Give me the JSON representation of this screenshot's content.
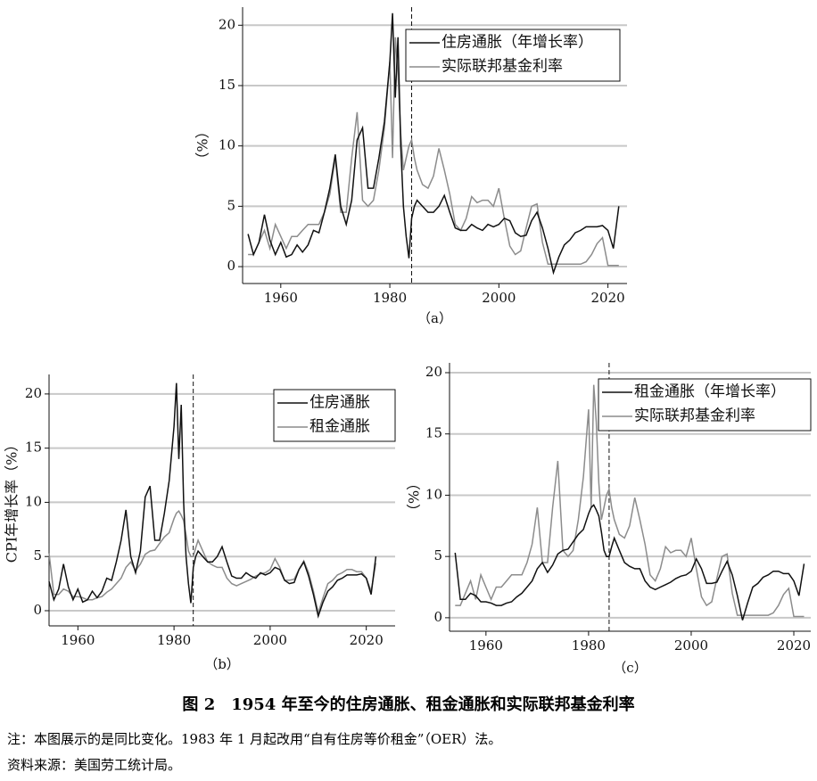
{
  "chart_data": [
    {
      "type": "line",
      "panel": "（a）",
      "ylabel": "（%）",
      "x": [
        1954,
        1955,
        1956,
        1957,
        1958,
        1959,
        1960,
        1961,
        1962,
        1963,
        1964,
        1965,
        1966,
        1967,
        1968,
        1969,
        1970,
        1971,
        1972,
        1973,
        1974,
        1975,
        1976,
        1977,
        1978,
        1979,
        1980,
        1980.5,
        1981,
        1981.5,
        1982,
        1982.5,
        1983,
        1983.5,
        1984,
        1984.5,
        1985,
        1986,
        1987,
        1988,
        1989,
        1990,
        1991,
        1992,
        1993,
        1994,
        1995,
        1996,
        1997,
        1998,
        1999,
        2000,
        2001,
        2002,
        2003,
        2004,
        2005,
        2006,
        2007,
        2008,
        2009,
        2010,
        2011,
        2012,
        2013,
        2014,
        2015,
        2016,
        2017,
        2018,
        2019,
        2020,
        2021,
        2022
      ],
      "series": [
        {
          "name": "住房通胀（年增长率）",
          "color": "#111111",
          "values": [
            2.7,
            1.0,
            2.0,
            4.3,
            2.2,
            1.0,
            2.0,
            0.8,
            1.0,
            1.8,
            1.2,
            1.8,
            3.0,
            2.8,
            4.5,
            6.5,
            9.3,
            5.0,
            3.5,
            5.5,
            10.5,
            11.5,
            6.5,
            6.5,
            9.0,
            12.0,
            17,
            21,
            14,
            19,
            10,
            5,
            2.5,
            0.7,
            4.0,
            5.0,
            5.5,
            5.0,
            4.5,
            4.5,
            5.0,
            5.9,
            4.5,
            3.2,
            3.0,
            3.0,
            3.5,
            3.2,
            3.0,
            3.5,
            3.3,
            3.5,
            4.0,
            3.8,
            2.8,
            2.5,
            2.6,
            3.8,
            4.5,
            3.2,
            1.5,
            -0.5,
            0.8,
            1.8,
            2.2,
            2.8,
            3.0,
            3.3,
            3.3,
            3.3,
            3.4,
            3.0,
            1.5,
            5.0
          ]
        },
        {
          "name": "实际联邦基金利率",
          "color": "#8c8c8c",
          "values": [
            1.0,
            1.0,
            2.0,
            3.0,
            1.5,
            3.5,
            2.5,
            1.5,
            2.5,
            2.5,
            3.0,
            3.5,
            3.5,
            3.5,
            4.5,
            6.0,
            9.0,
            4.5,
            4.5,
            9.0,
            12.8,
            5.5,
            5.0,
            5.5,
            8.0,
            11.5,
            17,
            9,
            19,
            16,
            11,
            8,
            9,
            10,
            10.5,
            9,
            8.0,
            6.8,
            6.5,
            7.5,
            9.8,
            8.0,
            6.0,
            3.5,
            3.0,
            4.0,
            5.8,
            5.3,
            5.5,
            5.5,
            5.0,
            6.5,
            4.0,
            1.7,
            1.0,
            1.3,
            3.2,
            5.0,
            5.2,
            2.0,
            0.2,
            0.2,
            0.2,
            0.2,
            0.2,
            0.2,
            0.2,
            0.4,
            1.0,
            1.9,
            2.4,
            0.1,
            0.1,
            0.1
          ]
        }
      ],
      "xlim": [
        1953,
        2023.5
      ],
      "xticks": [
        1960,
        1980,
        2000,
        2020
      ],
      "ylim": [
        -1.4,
        21.5
      ],
      "yticks": [
        0,
        5,
        10,
        15,
        20
      ],
      "grid": true,
      "vline": 1984,
      "legend": "upper right"
    },
    {
      "type": "line",
      "panel": "（b）",
      "ylabel": "CPI年增长率（%）",
      "x": [
        1954,
        1955,
        1956,
        1957,
        1958,
        1959,
        1960,
        1961,
        1962,
        1963,
        1964,
        1965,
        1966,
        1967,
        1968,
        1969,
        1970,
        1971,
        1972,
        1973,
        1974,
        1975,
        1976,
        1977,
        1978,
        1979,
        1980,
        1980.5,
        1981,
        1981.5,
        1982,
        1982.5,
        1983,
        1983.5,
        1984,
        1984.5,
        1985,
        1986,
        1987,
        1988,
        1989,
        1990,
        1991,
        1992,
        1993,
        1994,
        1995,
        1996,
        1997,
        1998,
        1999,
        2000,
        2001,
        2002,
        2003,
        2004,
        2005,
        2006,
        2007,
        2008,
        2009,
        2010,
        2011,
        2012,
        2013,
        2014,
        2015,
        2016,
        2017,
        2018,
        2019,
        2020,
        2021,
        2022
      ],
      "series": [
        {
          "name": "住房通胀",
          "color": "#111111",
          "values": [
            2.7,
            1.0,
            2.0,
            4.3,
            2.2,
            1.0,
            2.0,
            0.8,
            1.0,
            1.8,
            1.2,
            1.8,
            3.0,
            2.8,
            4.5,
            6.5,
            9.3,
            5.0,
            3.5,
            5.5,
            10.5,
            11.5,
            6.5,
            6.5,
            9.0,
            12.0,
            17,
            21,
            14,
            19,
            10,
            5,
            2.5,
            0.7,
            4.0,
            5.0,
            5.5,
            5.0,
            4.5,
            4.5,
            5.0,
            5.9,
            4.5,
            3.2,
            3.0,
            3.0,
            3.5,
            3.2,
            3.0,
            3.5,
            3.3,
            3.5,
            4.0,
            3.8,
            2.8,
            2.5,
            2.6,
            3.8,
            4.5,
            3.2,
            1.5,
            -0.5,
            0.8,
            1.8,
            2.2,
            2.8,
            3.0,
            3.3,
            3.3,
            3.3,
            3.4,
            3.0,
            1.5,
            5.0
          ]
        },
        {
          "name": "租金通胀",
          "color": "#8c8c8c",
          "values": [
            5.3,
            1.5,
            1.5,
            2.0,
            1.8,
            1.3,
            1.3,
            1.2,
            1.0,
            1.0,
            1.2,
            1.3,
            1.7,
            2.0,
            2.5,
            3.0,
            4.0,
            4.5,
            3.7,
            4.3,
            5.2,
            5.5,
            5.6,
            6.2,
            6.8,
            7.2,
            8.5,
            9.0,
            9.2,
            8.8,
            8.3,
            7.0,
            5.5,
            5.0,
            5.0,
            5.8,
            6.5,
            5.5,
            4.5,
            4.2,
            4.0,
            4.0,
            3.0,
            2.5,
            2.3,
            2.5,
            2.7,
            2.9,
            3.2,
            3.4,
            3.5,
            3.8,
            4.8,
            4.0,
            2.8,
            2.8,
            2.9,
            3.8,
            4.6,
            3.5,
            1.8,
            -0.2,
            1.2,
            2.5,
            2.8,
            3.3,
            3.5,
            3.8,
            3.8,
            3.6,
            3.6,
            3.0,
            1.8,
            4.4
          ]
        }
      ],
      "xlim": [
        1954,
        2026
      ],
      "xticks": [
        1960,
        1980,
        2000,
        2020
      ],
      "ylim": [
        -1.4,
        21.8
      ],
      "yticks": [
        0,
        5,
        10,
        15,
        20
      ],
      "grid": true,
      "vline": 1984,
      "legend": "upper right"
    },
    {
      "type": "line",
      "panel": "（c）",
      "ylabel": "（%）",
      "x": [
        1954,
        1955,
        1956,
        1957,
        1958,
        1959,
        1960,
        1961,
        1962,
        1963,
        1964,
        1965,
        1966,
        1967,
        1968,
        1969,
        1970,
        1971,
        1972,
        1973,
        1974,
        1975,
        1976,
        1977,
        1978,
        1979,
        1980,
        1980.5,
        1981,
        1981.5,
        1982,
        1982.5,
        1983,
        1983.5,
        1984,
        1984.5,
        1985,
        1986,
        1987,
        1988,
        1989,
        1990,
        1991,
        1992,
        1993,
        1994,
        1995,
        1996,
        1997,
        1998,
        1999,
        2000,
        2001,
        2002,
        2003,
        2004,
        2005,
        2006,
        2007,
        2008,
        2009,
        2010,
        2011,
        2012,
        2013,
        2014,
        2015,
        2016,
        2017,
        2018,
        2019,
        2020,
        2021,
        2022
      ],
      "series": [
        {
          "name": "租金通胀（年增长率）",
          "color": "#111111",
          "values": [
            5.3,
            1.5,
            1.5,
            2.0,
            1.8,
            1.3,
            1.3,
            1.2,
            1.0,
            1.0,
            1.2,
            1.3,
            1.7,
            2.0,
            2.5,
            3.0,
            4.0,
            4.5,
            3.7,
            4.3,
            5.2,
            5.5,
            5.6,
            6.2,
            6.8,
            7.2,
            8.5,
            9.0,
            9.2,
            8.8,
            8.3,
            7.0,
            5.5,
            5.0,
            5.0,
            5.8,
            6.5,
            5.5,
            4.5,
            4.2,
            4.0,
            4.0,
            3.0,
            2.5,
            2.3,
            2.5,
            2.7,
            2.9,
            3.2,
            3.4,
            3.5,
            3.8,
            4.8,
            4.0,
            2.8,
            2.8,
            2.9,
            3.8,
            4.6,
            3.5,
            1.8,
            -0.2,
            1.2,
            2.5,
            2.8,
            3.3,
            3.5,
            3.8,
            3.8,
            3.6,
            3.6,
            3.0,
            1.8,
            4.4
          ]
        },
        {
          "name": "实际联邦基金利率",
          "color": "#8c8c8c",
          "values": [
            1.0,
            1.0,
            2.0,
            3.0,
            1.5,
            3.5,
            2.5,
            1.5,
            2.5,
            2.5,
            3.0,
            3.5,
            3.5,
            3.5,
            4.5,
            6.0,
            9.0,
            4.5,
            4.5,
            9.0,
            12.8,
            5.5,
            5.0,
            5.5,
            8.0,
            11.5,
            17,
            9,
            19,
            16,
            11,
            8,
            9,
            10,
            10.5,
            9,
            8.0,
            6.8,
            6.5,
            7.5,
            9.8,
            8.0,
            6.0,
            3.5,
            3.0,
            4.0,
            5.8,
            5.3,
            5.5,
            5.5,
            5.0,
            6.5,
            4.0,
            1.7,
            1.0,
            1.3,
            3.2,
            5.0,
            5.2,
            2.0,
            0.2,
            0.2,
            0.2,
            0.2,
            0.2,
            0.2,
            0.2,
            0.4,
            1.0,
            1.9,
            2.4,
            0.1,
            0.1,
            0.1
          ]
        }
      ],
      "xlim": [
        1952.9,
        2023.3
      ],
      "xticks": [
        1960,
        1980,
        2000,
        2020
      ],
      "ylim": [
        -1.1,
        20.8
      ],
      "yticks": [
        0,
        5,
        10,
        15,
        20
      ],
      "grid": true,
      "vline": 1984,
      "legend": "upper right"
    }
  ],
  "caption": "图 2　1954 年至今的住房通胀、租金通胀和实际联邦基金利率",
  "note": "注：本图展示的是同比变化。1983 年 1 月起改用“自有住房等价租金”（OER）法。",
  "source": "资料来源：美国劳工统计局。"
}
